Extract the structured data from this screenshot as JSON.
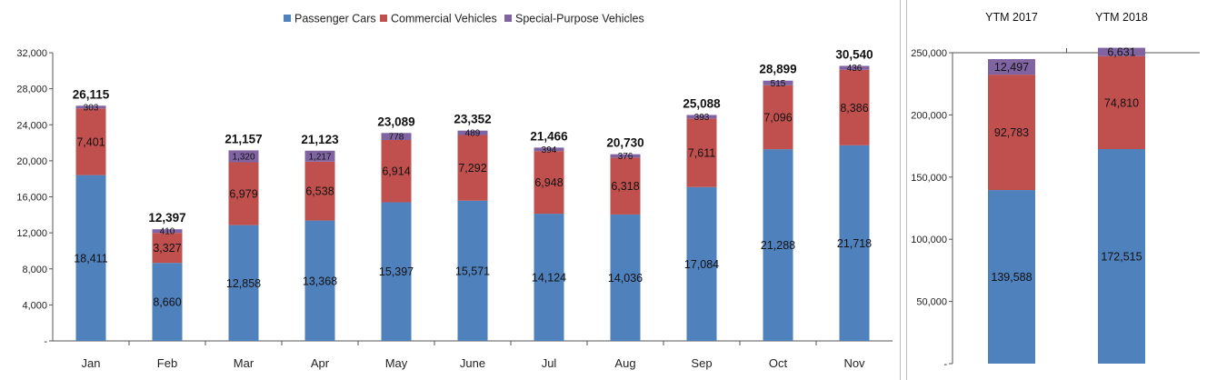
{
  "colors": {
    "passenger": "#4F81BD",
    "commercial": "#C0504D",
    "special": "#8064A2"
  },
  "chart_data": [
    {
      "type": "bar",
      "stacked": true,
      "categories": [
        "Jan",
        "Feb",
        "Mar",
        "Apr",
        "May",
        "June",
        "Jul",
        "Aug",
        "Sep",
        "Oct",
        "Nov"
      ],
      "series": [
        {
          "name": "Passenger Cars",
          "values": [
            18411,
            8660,
            12858,
            13368,
            15397,
            15571,
            14124,
            14036,
            17084,
            21288,
            21718
          ],
          "labels": [
            "18,411",
            "8,660",
            "12,858",
            "13,368",
            "15,397",
            "15,571",
            "14,124",
            "14,036",
            "17,084",
            "21,288",
            "21,718"
          ]
        },
        {
          "name": "Commercial Vehicles",
          "values": [
            7401,
            3327,
            6979,
            6538,
            6914,
            7292,
            6948,
            6318,
            7611,
            7096,
            8386
          ],
          "labels": [
            "7,401",
            "3,327",
            "6,979",
            "6,538",
            "6,914",
            "7,292",
            "6,948",
            "6,318",
            "7,611",
            "7,096",
            "8,386"
          ]
        },
        {
          "name": "Special-Purpose Vehicles",
          "values": [
            303,
            410,
            1320,
            1217,
            778,
            489,
            394,
            376,
            393,
            515,
            436
          ],
          "labels": [
            "303",
            "410",
            "1,320",
            "1,217",
            "778",
            "489",
            "394",
            "376",
            "393",
            "515",
            "436"
          ]
        }
      ],
      "totals": [
        "26,115",
        "12,397",
        "21,157",
        "21,123",
        "23,089",
        "23,352",
        "21,466",
        "20,730",
        "25,088",
        "28,899",
        "30,540"
      ],
      "ylim": [
        0,
        32000
      ],
      "yticks": [
        0,
        4000,
        8000,
        12000,
        16000,
        20000,
        24000,
        28000,
        32000
      ],
      "ytick_labels": [
        "-",
        "4,000",
        "8,000",
        "12,000",
        "16,000",
        "20,000",
        "24,000",
        "28,000",
        "32,000"
      ],
      "legend": "top-center",
      "grid": false
    },
    {
      "type": "bar",
      "stacked": true,
      "categories": [
        "YTM 2017",
        "YTM 2018"
      ],
      "series": [
        {
          "name": "Passenger Cars",
          "values": [
            139588,
            172515
          ],
          "labels": [
            "139,588",
            "172,515"
          ]
        },
        {
          "name": "Commercial Vehicles",
          "values": [
            92783,
            74810
          ],
          "labels": [
            "92,783",
            "74,810"
          ]
        },
        {
          "name": "Special-Purpose Vehicles",
          "values": [
            12497,
            6631
          ],
          "labels": [
            "12,497",
            "6,631"
          ]
        }
      ],
      "ylim": [
        0,
        250000
      ],
      "yticks": [
        0,
        50000,
        100000,
        150000,
        200000,
        250000
      ],
      "ytick_labels": [
        "-",
        "50,000",
        "100,000",
        "150,000",
        "200,000",
        "250,000"
      ],
      "category_position": "top",
      "grid": false
    }
  ]
}
